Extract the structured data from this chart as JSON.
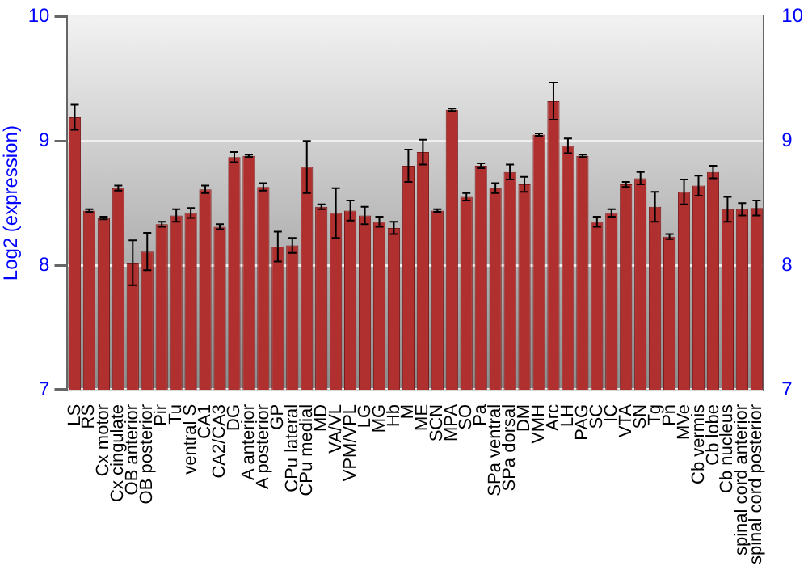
{
  "chart_data": {
    "type": "bar",
    "ylabel": "Log2 (expression)",
    "categories": [
      "LS",
      "RS",
      "Cx motor",
      "Cx cingulate",
      "OB anterior",
      "OB posterior",
      "Pir",
      "Tu",
      "ventral S",
      "CA1",
      "CA2/CA3",
      "DG",
      "A anterior",
      "A posterior",
      "GP",
      "CPu lateral",
      "CPu medial",
      "MD",
      "VA/VL",
      "VPM/VPL",
      "LG",
      "MG",
      "Hb",
      "M",
      "ME",
      "SCN",
      "MPA",
      "SO",
      "Pa",
      "SPa ventral",
      "SPa dorsal",
      "DM",
      "VMH",
      "Arc",
      "LH",
      "PAG",
      "SC",
      "IC",
      "VTA",
      "SN",
      "Tg",
      "Pn",
      "MVe",
      "Cb vermis",
      "Cb lobe",
      "Cb nucleus",
      "spinal cord anterior",
      "spinal cord posterior"
    ],
    "values": [
      9.19,
      8.44,
      8.38,
      8.62,
      8.02,
      8.11,
      8.33,
      8.4,
      8.42,
      8.61,
      8.31,
      8.87,
      8.88,
      8.63,
      8.15,
      8.16,
      8.79,
      8.47,
      8.42,
      8.44,
      8.4,
      8.35,
      8.3,
      8.8,
      8.91,
      8.44,
      9.25,
      8.55,
      8.8,
      8.62,
      8.75,
      8.65,
      9.05,
      9.32,
      8.96,
      8.88,
      8.35,
      8.42,
      8.65,
      8.7,
      8.47,
      8.23,
      8.59,
      8.64,
      8.75,
      8.45,
      8.45,
      8.46
    ],
    "errors": [
      0.1,
      0.01,
      0.01,
      0.02,
      0.18,
      0.15,
      0.02,
      0.05,
      0.04,
      0.03,
      0.02,
      0.04,
      0.01,
      0.03,
      0.12,
      0.06,
      0.21,
      0.02,
      0.2,
      0.08,
      0.07,
      0.04,
      0.05,
      0.13,
      0.1,
      0.01,
      0.01,
      0.03,
      0.02,
      0.04,
      0.06,
      0.06,
      0.01,
      0.15,
      0.06,
      0.01,
      0.04,
      0.03,
      0.02,
      0.05,
      0.12,
      0.02,
      0.1,
      0.08,
      0.05,
      0.1,
      0.05,
      0.06
    ],
    "color": "#b0302f",
    "ylim": [
      7,
      10
    ],
    "yticks": [
      7,
      8,
      9,
      10
    ],
    "y2lim": [
      7,
      10
    ],
    "y2ticks": [
      7,
      8,
      9,
      10
    ],
    "grid": "y"
  }
}
